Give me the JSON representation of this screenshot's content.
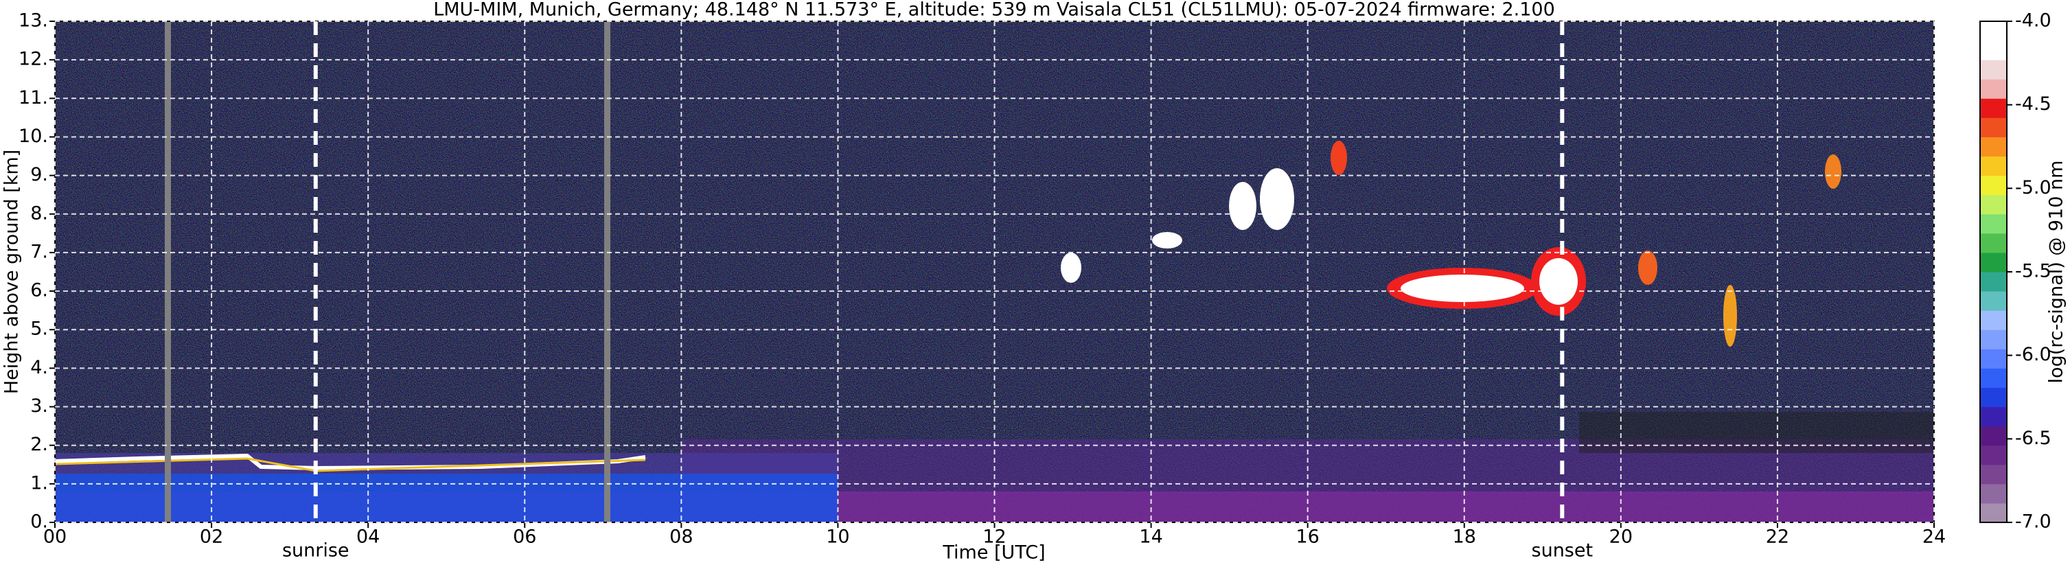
{
  "chart_data": {
    "type": "heatmap",
    "title": "LMU-MIM, Munich, Germany; 48.148° N 11.573° E, altitude: 539 m    Vaisala CL51 (CL51LMU): 05-07-2024    firmware: 2.100",
    "xlabel": "Time [UTC]",
    "ylabel": "Height above ground [km]",
    "xlim": [
      0,
      24
    ],
    "xticks": [
      {
        "value": 0,
        "label": "00"
      },
      {
        "value": 2,
        "label": "02"
      },
      {
        "value": 4,
        "label": "04"
      },
      {
        "value": 6,
        "label": "06"
      },
      {
        "value": 8,
        "label": "08"
      },
      {
        "value": 10,
        "label": "10"
      },
      12,
      14,
      16,
      18,
      20,
      22,
      24
    ],
    "ylim": [
      0,
      13
    ],
    "yticks": [
      {
        "value": 0,
        "label": "0."
      },
      {
        "value": 1,
        "label": "1."
      },
      {
        "value": 2,
        "label": "2."
      },
      {
        "value": 3,
        "label": "3."
      },
      {
        "value": 4,
        "label": "4."
      },
      {
        "value": 5,
        "label": "5."
      },
      {
        "value": 6,
        "label": "6."
      },
      {
        "value": 7,
        "label": "7."
      },
      {
        "value": 8,
        "label": "8."
      },
      {
        "value": 9,
        "label": "9."
      },
      {
        "value": 10,
        "label": "10."
      },
      {
        "value": 11,
        "label": "11."
      },
      {
        "value": 12,
        "label": "12."
      },
      {
        "value": 13,
        "label": "13."
      }
    ],
    "grid": true,
    "annotations": [
      {
        "text": "sunrise",
        "x": 3.33
      },
      {
        "text": "sunset",
        "x": 19.25
      }
    ],
    "colorbar": {
      "label": "log(rc-signal) @ 910 nm",
      "lim": [
        -7,
        -4
      ],
      "ticks": [
        {
          "value": -7,
          "label": "-7.0"
        },
        {
          "value": -6.5,
          "label": "-6.5"
        },
        {
          "value": -6,
          "label": "-6.0"
        },
        {
          "value": -5.5,
          "label": "-5.5"
        },
        {
          "value": -5,
          "label": "-5.0"
        },
        {
          "value": -4.5,
          "label": "-4.5"
        },
        {
          "value": -4,
          "label": "-4.0"
        }
      ],
      "colors": [
        "#a68fae",
        "#8e6aa0",
        "#7c4592",
        "#6a2a8a",
        "#581a82",
        "#3a20b0",
        "#2040e0",
        "#3060f8",
        "#5a80ff",
        "#7fa0ff",
        "#a0bcff",
        "#60c0c0",
        "#30a890",
        "#20a040",
        "#50c050",
        "#80e070",
        "#c0f060",
        "#f0f030",
        "#f8c820",
        "#f89020",
        "#f05020",
        "#e81818",
        "#f0b0b0",
        "#f0d8d8",
        "#ffffff",
        "#ffffff"
      ]
    }
  }
}
